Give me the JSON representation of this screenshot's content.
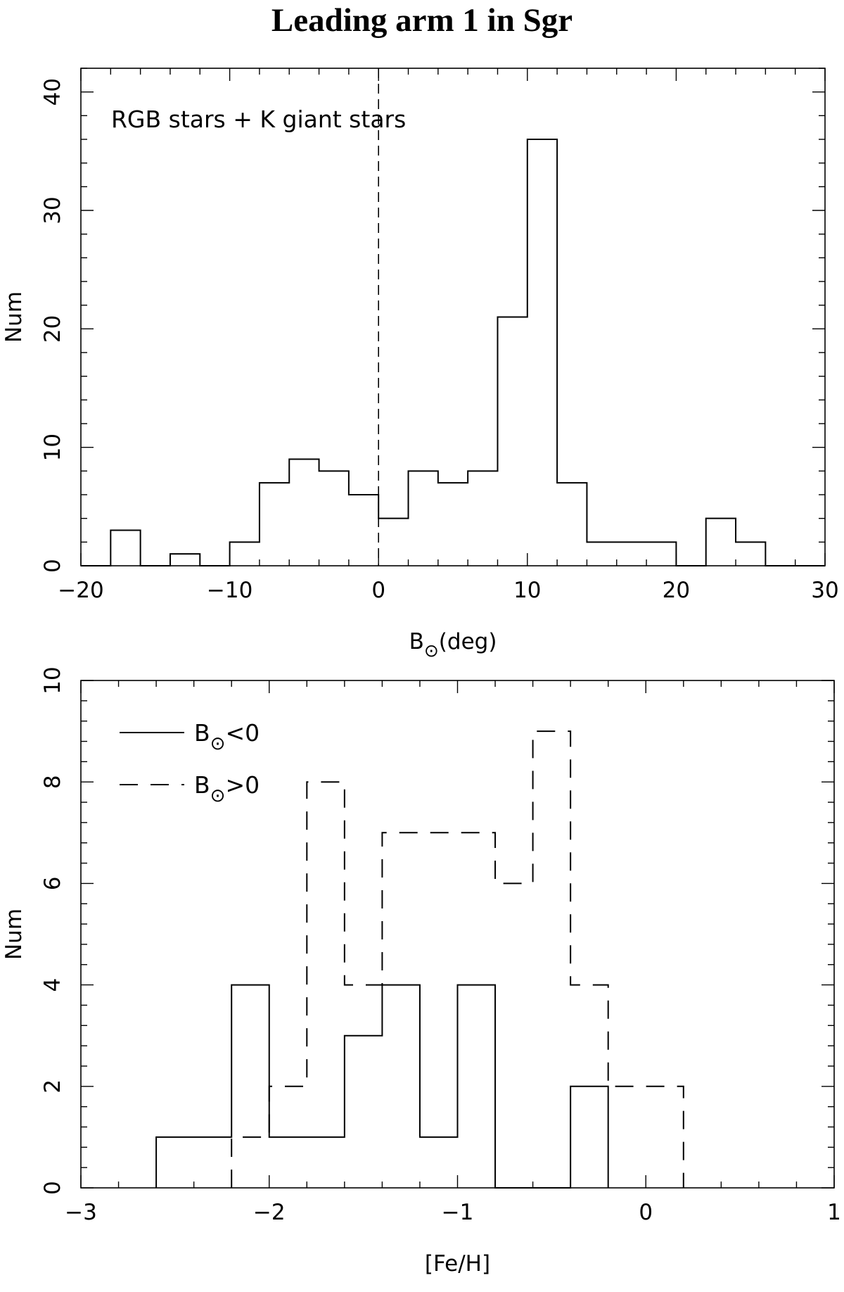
{
  "title": "Leading arm 1 in Sgr",
  "chart_data": [
    {
      "type": "histogram",
      "xlabel": "B⊙(deg)",
      "ylabel": "Num",
      "annotation": "RGB stars + K giant stars",
      "xlim": [
        -20,
        30
      ],
      "ylim": [
        0,
        42
      ],
      "xticks": [
        -20,
        -10,
        0,
        10,
        20,
        30
      ],
      "yticks": [
        0,
        10,
        20,
        30,
        40
      ],
      "bin_edges": [
        -20,
        -18,
        -16,
        -14,
        -12,
        -10,
        -8,
        -6,
        -4,
        -2,
        0,
        2,
        4,
        6,
        8,
        10,
        12,
        14,
        16,
        18,
        20,
        22,
        24,
        26,
        28,
        30
      ],
      "counts": [
        0,
        3,
        0,
        1,
        0,
        2,
        7,
        9,
        8,
        6,
        4,
        8,
        7,
        8,
        21,
        36,
        7,
        2,
        2,
        2,
        0,
        4,
        2,
        0,
        0
      ],
      "reference_line": {
        "x": 0,
        "style": "dashed"
      },
      "grid": false
    },
    {
      "type": "histogram",
      "xlabel": "[Fe/H]",
      "ylabel": "Num",
      "xlim": [
        -3,
        1
      ],
      "ylim": [
        0,
        10
      ],
      "xticks": [
        -3,
        -2,
        -1,
        0,
        1
      ],
      "yticks": [
        0,
        2,
        4,
        6,
        8,
        10
      ],
      "legend_position": "top-left",
      "series": [
        {
          "name": "B⊙<0",
          "style": "solid",
          "bin_edges": [
            -2.6,
            -2.4,
            -2.2,
            -2.0,
            -1.8,
            -1.6,
            -1.4,
            -1.2,
            -1.0,
            -0.8,
            -0.6,
            -0.4,
            -0.2
          ],
          "counts": [
            1,
            1,
            4,
            1,
            1,
            3,
            4,
            1,
            4,
            0,
            0,
            2
          ]
        },
        {
          "name": "B⊙>0",
          "style": "dashed",
          "bin_edges": [
            -2.2,
            -2.0,
            -1.8,
            -1.6,
            -1.4,
            -1.2,
            -1.0,
            -0.8,
            -0.6,
            -0.4,
            -0.2,
            0.0,
            0.2
          ],
          "counts": [
            1,
            2,
            8,
            4,
            7,
            7,
            7,
            6,
            9,
            4,
            2,
            2
          ]
        }
      ],
      "grid": false
    }
  ]
}
